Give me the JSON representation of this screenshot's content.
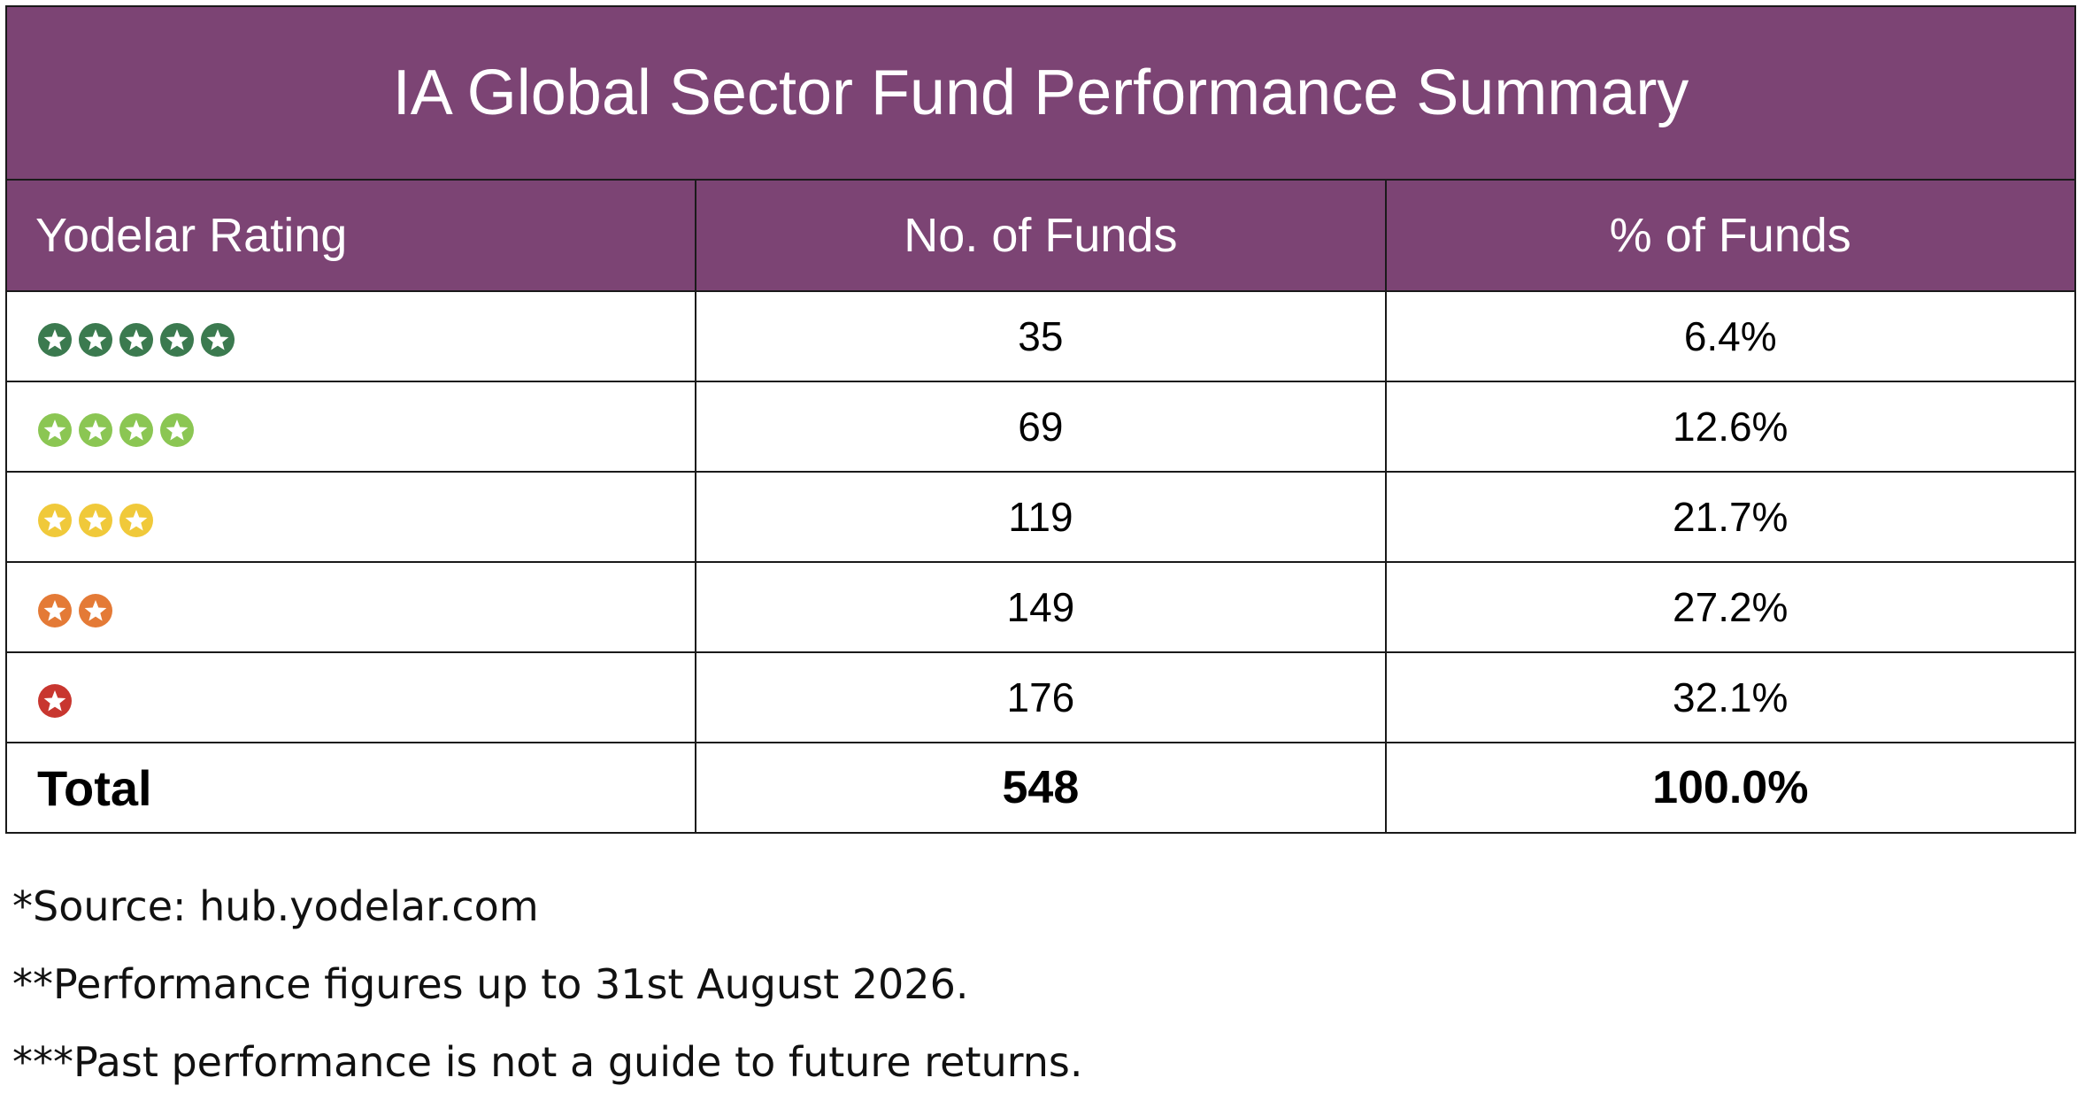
{
  "table": {
    "title": "IA Global Sector Fund Performance Summary",
    "headers": [
      "Yodelar Rating",
      "No. of Funds",
      "% of Funds"
    ],
    "rows": [
      {
        "stars": 5,
        "star_color": "#3b7a4f",
        "funds": "35",
        "percent": "6.4%"
      },
      {
        "stars": 4,
        "star_color": "#8bc653",
        "funds": "69",
        "percent": "12.6%"
      },
      {
        "stars": 3,
        "star_color": "#f0c93a",
        "funds": "119",
        "percent": "21.7%"
      },
      {
        "stars": 2,
        "star_color": "#e47a36",
        "funds": "149",
        "percent": "27.2%"
      },
      {
        "stars": 1,
        "star_color": "#c8362f",
        "funds": "176",
        "percent": "32.1%"
      }
    ],
    "total": {
      "label": "Total",
      "funds": "548",
      "percent": "100.0%"
    }
  },
  "colors": {
    "header_bg": "#7c4474",
    "header_text": "#ffffff"
  },
  "icons": {
    "rating_star": "star-in-circle-icon"
  },
  "notes": [
    "*Source: hub.yodelar.com",
    "**Performance figures up to 31st August 2026.",
    "***Past performance is not a guide to future returns."
  ]
}
